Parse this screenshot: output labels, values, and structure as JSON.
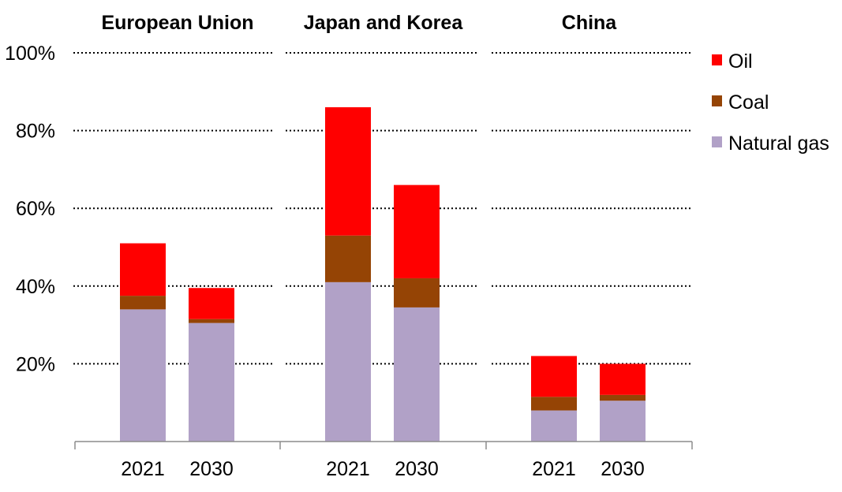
{
  "chart_data": {
    "type": "bar",
    "stacked": true,
    "title": "",
    "ylabel": "",
    "ylim": [
      0,
      100
    ],
    "y_ticks": [
      20,
      40,
      60,
      80,
      100
    ],
    "y_tick_labels": [
      "20%",
      "40%",
      "60%",
      "80%",
      "100%"
    ],
    "grid": "dotted horizontal",
    "legend_position": "top-right",
    "legend": [
      "Oil",
      "Coal",
      "Natural gas"
    ],
    "colors": {
      "Natural gas": "#b1a1c7",
      "Coal": "#954405",
      "Oil": "#ff0000"
    },
    "panels": [
      {
        "title": "European Union",
        "categories": [
          "2021",
          "2030"
        ],
        "series": [
          {
            "name": "Natural gas",
            "values": [
              34,
              30.5
            ]
          },
          {
            "name": "Coal",
            "values": [
              3.5,
              1
            ]
          },
          {
            "name": "Oil",
            "values": [
              13.5,
              8
            ]
          }
        ]
      },
      {
        "title": "Japan and Korea",
        "categories": [
          "2021",
          "2030"
        ],
        "series": [
          {
            "name": "Natural gas",
            "values": [
              41,
              34.5
            ]
          },
          {
            "name": "Coal",
            "values": [
              12,
              7.5
            ]
          },
          {
            "name": "Oil",
            "values": [
              33,
              24
            ]
          }
        ]
      },
      {
        "title": "China",
        "categories": [
          "2021",
          "2030"
        ],
        "series": [
          {
            "name": "Natural gas",
            "values": [
              8,
              10.5
            ]
          },
          {
            "name": "Coal",
            "values": [
              3.5,
              1.5
            ]
          },
          {
            "name": "Oil",
            "values": [
              10.5,
              8
            ]
          }
        ]
      }
    ]
  }
}
